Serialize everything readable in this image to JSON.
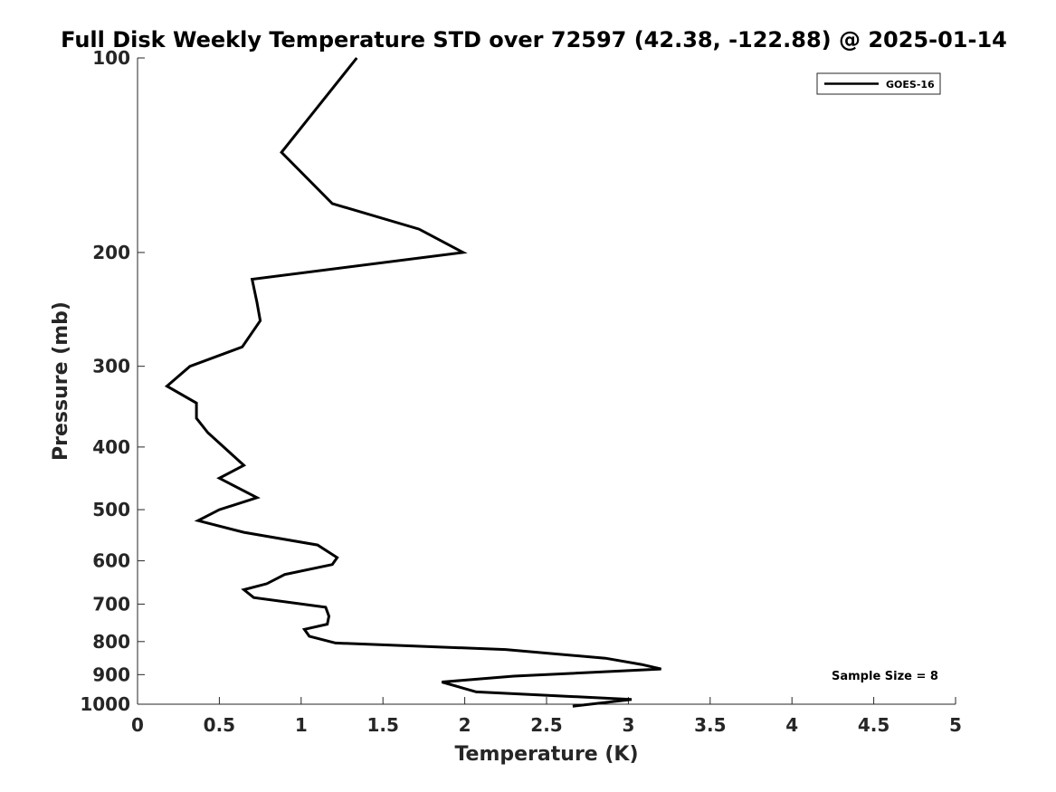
{
  "chart_data": {
    "type": "line",
    "title": "Full Disk Weekly Temperature STD over 72597 (42.38, -122.88) @ 2025-01-14",
    "xlabel": "Temperature (K)",
    "ylabel": "Pressure (mb)",
    "xlim": [
      0,
      5
    ],
    "ylim": [
      100,
      1000
    ],
    "y_scale": "log",
    "y_reversed": true,
    "x_ticks": [
      0,
      0.5,
      1,
      1.5,
      2,
      2.5,
      3,
      3.5,
      4,
      4.5,
      5
    ],
    "x_tick_labels": [
      "0",
      "0.5",
      "1",
      "1.5",
      "2",
      "2.5",
      "3",
      "3.5",
      "4",
      "4.5",
      "5"
    ],
    "y_ticks": [
      100,
      200,
      300,
      400,
      500,
      600,
      700,
      800,
      900,
      1000
    ],
    "y_tick_labels": [
      "100",
      "200",
      "300",
      "400",
      "500",
      "600",
      "700",
      "800",
      "900",
      "1000"
    ],
    "grid": false,
    "legend_position": "top-right",
    "annotation": "Sample Size = 8",
    "series": [
      {
        "name": "GOES-16",
        "color": "#000000",
        "points": [
          [
            1.34,
            100
          ],
          [
            0.88,
            140
          ],
          [
            1.19,
            168
          ],
          [
            1.72,
            184
          ],
          [
            1.99,
            200
          ],
          [
            0.7,
            220
          ],
          [
            0.73,
            239
          ],
          [
            0.75,
            255
          ],
          [
            0.64,
            280
          ],
          [
            0.32,
            300
          ],
          [
            0.18,
            322
          ],
          [
            0.36,
            342
          ],
          [
            0.36,
            361
          ],
          [
            0.43,
            380
          ],
          [
            0.65,
            427
          ],
          [
            0.5,
            447
          ],
          [
            0.73,
            479
          ],
          [
            0.5,
            500
          ],
          [
            0.37,
            520
          ],
          [
            0.65,
            542
          ],
          [
            1.1,
            567
          ],
          [
            1.22,
            593
          ],
          [
            1.19,
            608
          ],
          [
            0.9,
            630
          ],
          [
            0.79,
            651
          ],
          [
            0.65,
            665
          ],
          [
            0.71,
            684
          ],
          [
            1.15,
            708
          ],
          [
            1.17,
            731
          ],
          [
            1.16,
            752
          ],
          [
            1.02,
            766
          ],
          [
            1.05,
            785
          ],
          [
            1.21,
            804
          ],
          [
            2.25,
            823
          ],
          [
            2.86,
            849
          ],
          [
            3.08,
            868
          ],
          [
            3.2,
            882
          ],
          [
            2.3,
            905
          ],
          [
            1.86,
            924
          ],
          [
            2.07,
            957
          ],
          [
            3.02,
            983
          ],
          [
            2.66,
            1007
          ]
        ]
      }
    ]
  }
}
